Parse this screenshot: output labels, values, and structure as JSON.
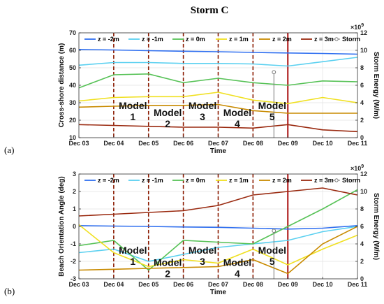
{
  "title": "Storm C",
  "colors": {
    "z_m2": "#2f6ff0",
    "z_m1": "#5ad0f0",
    "z_0": "#57c257",
    "z_1": "#f0e020",
    "z_2": "#c88a00",
    "z_3": "#9a2a10",
    "storm": "#777777",
    "model_line": "#8b1a00",
    "storm_peak_line": "#aa1010"
  },
  "chart_data": [
    {
      "type": "line",
      "panel_label": "(a)",
      "xlabel": "Time",
      "ylabel": "Cross-shore distance (m)",
      "y2label": "Storm Energy (W/m)",
      "y2_exponent": "×10",
      "y2_exponent_power": "9",
      "x": [
        "Dec 03",
        "Dec 04",
        "Dec 05",
        "Dec 06",
        "Dec 07",
        "Dec 08",
        "Dec 09",
        "Dec 10",
        "Dec 11"
      ],
      "ylim": [
        10,
        70
      ],
      "yticks": [
        "10",
        "20",
        "30",
        "40",
        "50",
        "60",
        "70"
      ],
      "y2lim": [
        0,
        12
      ],
      "y2ticks": [
        "0",
        "2",
        "4",
        "6",
        "8",
        "10",
        "12"
      ],
      "legend_placement": "top",
      "series": [
        {
          "name": "z = -2m",
          "color_key": "z_m2",
          "values": [
            60.5,
            60.2,
            59.8,
            59.5,
            59.2,
            58.8,
            58.5,
            58.2,
            57.8
          ]
        },
        {
          "name": "z = -1m",
          "color_key": "z_m1",
          "values": [
            51.5,
            53,
            53,
            52.5,
            52.5,
            52.2,
            51,
            53.5,
            56
          ]
        },
        {
          "name": "z = 0m",
          "color_key": "z_0",
          "values": [
            38.5,
            46,
            46.5,
            41.5,
            44,
            41.5,
            40,
            42.5,
            42
          ]
        },
        {
          "name": "z = 1m",
          "color_key": "z_1",
          "values": [
            31,
            33,
            33.5,
            33.5,
            36,
            31.5,
            29.5,
            33,
            30
          ]
        },
        {
          "name": "z = 2m",
          "color_key": "z_2",
          "values": [
            27.5,
            28,
            28.5,
            28.5,
            29,
            25.5,
            24,
            24,
            24
          ]
        },
        {
          "name": "z = 3m",
          "color_key": "z_3",
          "values": [
            17.5,
            17,
            16.5,
            16,
            16,
            15.5,
            17.5,
            14.5,
            13.5
          ]
        }
      ],
      "storm": {
        "name": "Storm",
        "x": 5.6,
        "value": 7.5
      },
      "model_boundaries": [
        1,
        2,
        3,
        4,
        5
      ],
      "storm_peak_x": 6,
      "models": [
        {
          "label": "Model",
          "number": "1",
          "x": 1.55,
          "y": 26.5
        },
        {
          "label": "Model",
          "number": "2",
          "x": 2.55,
          "y": 22.5
        },
        {
          "label": "Model",
          "number": "3",
          "x": 3.55,
          "y": 26.5
        },
        {
          "label": "Model",
          "number": "4",
          "x": 4.55,
          "y": 22.5
        },
        {
          "label": "Model",
          "number": "5",
          "x": 5.55,
          "y": 26.5
        }
      ]
    },
    {
      "type": "line",
      "panel_label": "(b)",
      "xlabel": "Time",
      "ylabel": "Beach Orientation Angle (deg)",
      "y2label": "Storm Energy (W/m)",
      "y2_exponent": "×10",
      "y2_exponent_power": "9",
      "x": [
        "Dec 03",
        "Dec 04",
        "Dec 05",
        "Dec 06",
        "Dec 07",
        "Dec 08",
        "Dec 09",
        "Dec 10",
        "Dec 11"
      ],
      "ylim": [
        -3,
        3
      ],
      "yticks": [
        "-3",
        "-2",
        "-1",
        "0",
        "1",
        "2",
        "3"
      ],
      "y2lim": [
        0,
        12
      ],
      "y2ticks": [
        "0",
        "2",
        "4",
        "6",
        "8",
        "10",
        "12"
      ],
      "legend_placement": "top",
      "series": [
        {
          "name": "z = -2m",
          "color_key": "z_m2",
          "values": [
            0.05,
            0.02,
            0,
            -0.03,
            -0.05,
            -0.1,
            -0.15,
            -0.1,
            0.05
          ]
        },
        {
          "name": "z = -1m",
          "color_key": "z_m1",
          "values": [
            -1.5,
            -1.3,
            -2,
            -1.6,
            -1.2,
            -1,
            -0.8,
            -0.3,
            0
          ]
        },
        {
          "name": "z = 0m",
          "color_key": "z_0",
          "values": [
            -1.1,
            -0.8,
            -2.5,
            -0.8,
            -0.9,
            -1,
            0,
            1,
            2.1
          ]
        },
        {
          "name": "z = 1m",
          "color_key": "z_1",
          "values": [
            0.1,
            -1.5,
            -2.3,
            -1.9,
            -2.1,
            -1.3,
            -2.2,
            -1.3,
            -0.5
          ]
        },
        {
          "name": "z = 2m",
          "color_key": "z_2",
          "values": [
            -2.5,
            -2.45,
            -2.4,
            -2.35,
            -2.3,
            -1.9,
            -2.7,
            -1,
            0
          ]
        },
        {
          "name": "z = 3m",
          "color_key": "z_3",
          "values": [
            0.6,
            0.7,
            0.8,
            0.9,
            1.2,
            1.8,
            2,
            2.2,
            1.8
          ]
        }
      ],
      "storm": {
        "name": "Storm",
        "x": 5.6,
        "value": 5.5
      },
      "model_boundaries": [
        1,
        2,
        3,
        4,
        5
      ],
      "storm_peak_x": 6,
      "models": [
        {
          "label": "Model",
          "number": "1",
          "x": 1.55,
          "y": -1.55
        },
        {
          "label": "Model",
          "number": "2",
          "x": 2.55,
          "y": -2.25
        },
        {
          "label": "Model",
          "number": "3",
          "x": 3.55,
          "y": -1.55
        },
        {
          "label": "Model",
          "number": "4",
          "x": 4.55,
          "y": -2.25
        },
        {
          "label": "Model",
          "number": "5",
          "x": 5.55,
          "y": -1.55
        }
      ]
    }
  ]
}
